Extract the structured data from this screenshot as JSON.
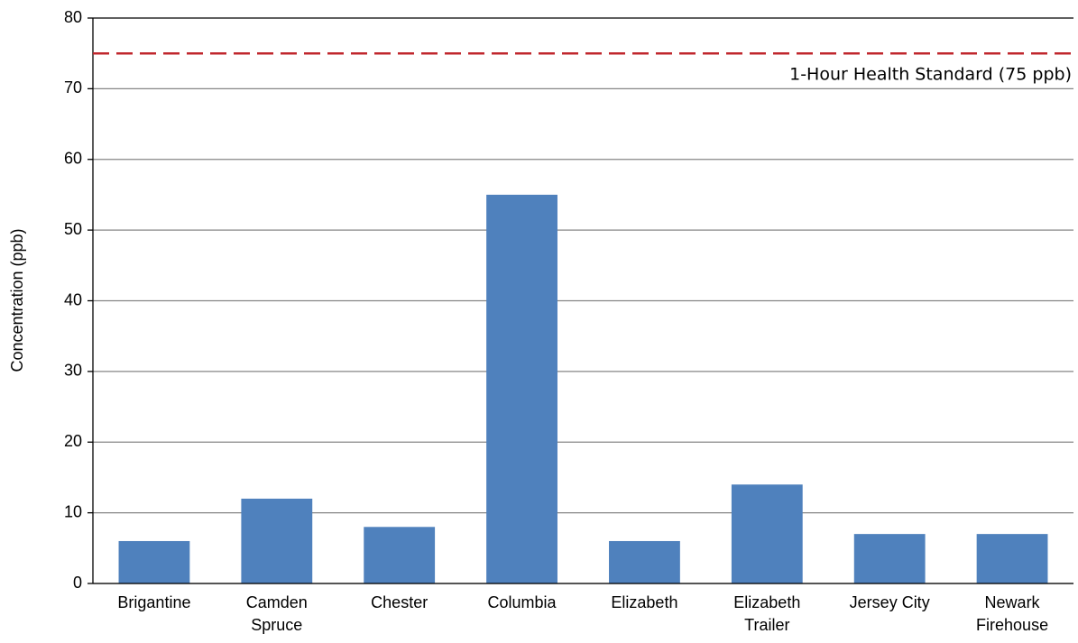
{
  "chart_data": {
    "type": "bar",
    "y_label": "Concentration (ppb)",
    "categories": [
      "Brigantine",
      "Camden Spruce",
      "Chester",
      "Columbia",
      "Elizabeth",
      "Elizabeth Trailer",
      "Jersey City",
      "Newark Firehouse"
    ],
    "values": [
      6,
      12,
      8,
      55,
      6,
      14,
      7,
      7
    ],
    "color": "#4f81bd",
    "ylim": [
      0,
      80
    ],
    "yticks": [
      0,
      10,
      20,
      30,
      40,
      50,
      60,
      70,
      80
    ],
    "grid": true,
    "reference_line": {
      "value": 75,
      "label": "1-Hour Health Standard (75 ppb)",
      "color": "#c0272d"
    }
  }
}
